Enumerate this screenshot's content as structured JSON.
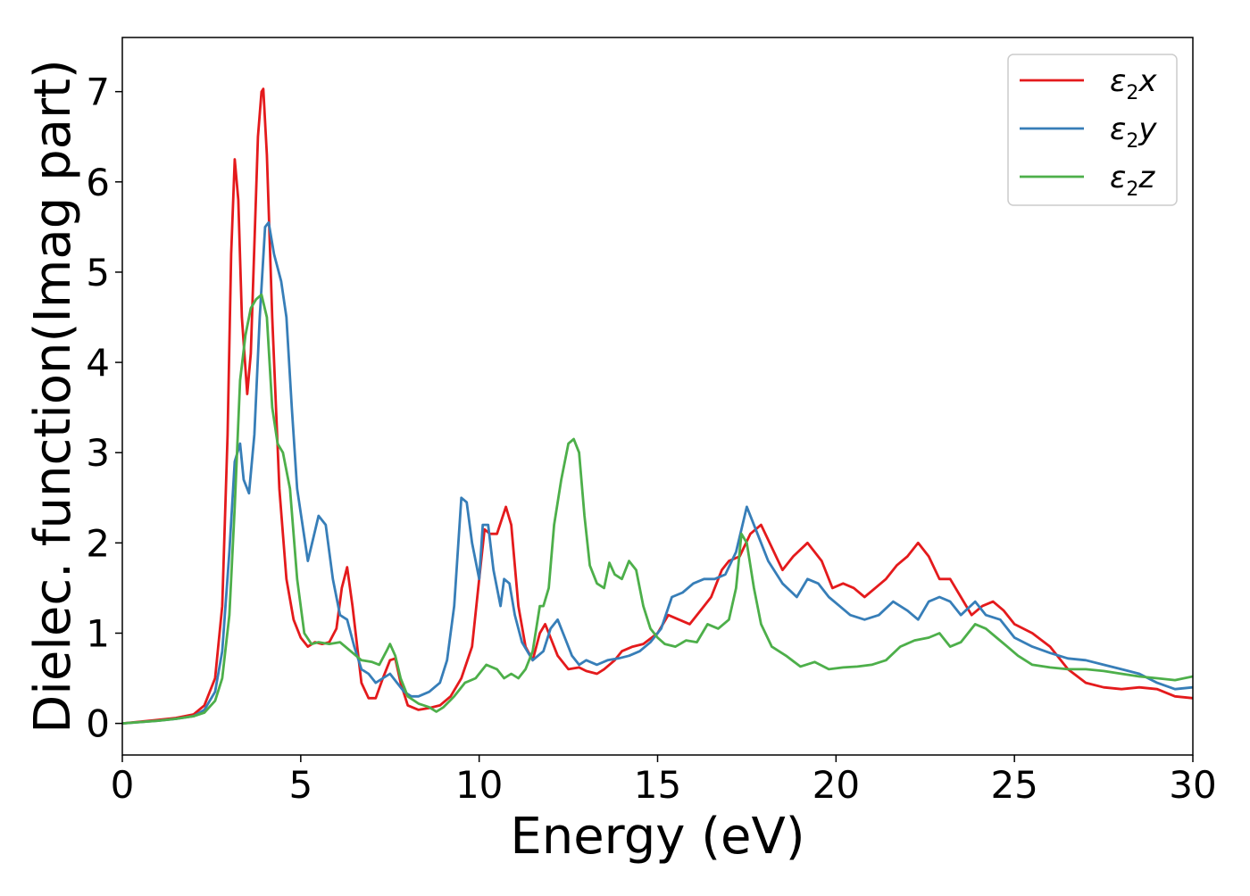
{
  "chart_data": {
    "type": "line",
    "xlabel": "Energy (eV)",
    "ylabel": "Dielec. function(Imag part)",
    "xlim": [
      0,
      30
    ],
    "ylim": [
      -0.35,
      7.6
    ],
    "xticks": [
      0,
      5,
      10,
      15,
      20,
      25,
      30
    ],
    "yticks": [
      0,
      1,
      2,
      3,
      4,
      5,
      6,
      7
    ],
    "grid": false,
    "legend_position": "top-right",
    "series": [
      {
        "name": "ε₂x",
        "legend_base": "ε",
        "legend_sub": "2",
        "legend_axis": "x",
        "color": "#e41a1c",
        "x": [
          0,
          1,
          1.5,
          2,
          2.3,
          2.6,
          2.8,
          2.95,
          3.05,
          3.15,
          3.25,
          3.35,
          3.5,
          3.6,
          3.7,
          3.8,
          3.9,
          3.95,
          4.05,
          4.2,
          4.4,
          4.6,
          4.8,
          5,
          5.2,
          5.4,
          5.6,
          5.8,
          6,
          6.15,
          6.3,
          6.45,
          6.7,
          6.9,
          7.1,
          7.3,
          7.5,
          7.65,
          7.8,
          8,
          8.3,
          8.6,
          8.9,
          9.2,
          9.5,
          9.8,
          10,
          10.15,
          10.3,
          10.5,
          10.75,
          10.9,
          11.1,
          11.3,
          11.5,
          11.7,
          11.85,
          12,
          12.2,
          12.5,
          12.8,
          13,
          13.3,
          13.5,
          13.8,
          14,
          14.3,
          14.6,
          15,
          15.3,
          15.6,
          15.9,
          16.2,
          16.5,
          16.8,
          17,
          17.3,
          17.6,
          17.9,
          18.2,
          18.5,
          18.8,
          19.2,
          19.6,
          19.9,
          20.2,
          20.5,
          20.8,
          21.1,
          21.4,
          21.7,
          22,
          22.3,
          22.6,
          22.9,
          23.2,
          23.5,
          23.8,
          24.1,
          24.4,
          24.7,
          25,
          25.5,
          26,
          26.5,
          27,
          27.5,
          28,
          28.5,
          29,
          29.5,
          30
        ],
        "values": [
          0,
          0.04,
          0.06,
          0.1,
          0.2,
          0.5,
          1.3,
          3.2,
          5.2,
          6.25,
          5.8,
          4.5,
          3.65,
          4.1,
          5.3,
          6.5,
          7.0,
          7.03,
          6.3,
          4.5,
          2.6,
          1.6,
          1.15,
          0.95,
          0.85,
          0.9,
          0.88,
          0.9,
          1.05,
          1.5,
          1.73,
          1.3,
          0.45,
          0.28,
          0.28,
          0.5,
          0.7,
          0.72,
          0.45,
          0.2,
          0.15,
          0.17,
          0.2,
          0.3,
          0.5,
          0.85,
          1.6,
          2.15,
          2.1,
          2.1,
          2.4,
          2.2,
          1.3,
          0.85,
          0.7,
          1.0,
          1.1,
          0.95,
          0.75,
          0.6,
          0.62,
          0.58,
          0.55,
          0.6,
          0.7,
          0.8,
          0.85,
          0.88,
          1.0,
          1.2,
          1.15,
          1.1,
          1.25,
          1.4,
          1.7,
          1.8,
          1.85,
          2.1,
          2.2,
          1.95,
          1.7,
          1.85,
          2.0,
          1.8,
          1.5,
          1.55,
          1.5,
          1.4,
          1.5,
          1.6,
          1.75,
          1.85,
          2.0,
          1.85,
          1.6,
          1.6,
          1.4,
          1.2,
          1.3,
          1.35,
          1.25,
          1.1,
          1.0,
          0.85,
          0.6,
          0.45,
          0.4,
          0.38,
          0.4,
          0.38,
          0.3,
          0.28
        ]
      },
      {
        "name": "ε₂y",
        "legend_base": "ε",
        "legend_sub": "2",
        "legend_axis": "y",
        "color": "#377eb8",
        "x": [
          0,
          1,
          1.5,
          2,
          2.3,
          2.6,
          2.8,
          3.0,
          3.15,
          3.3,
          3.4,
          3.55,
          3.7,
          3.85,
          4.0,
          4.1,
          4.25,
          4.45,
          4.6,
          4.75,
          4.9,
          5.05,
          5.2,
          5.5,
          5.7,
          5.9,
          6.1,
          6.3,
          6.5,
          6.7,
          6.9,
          7.1,
          7.3,
          7.5,
          7.7,
          7.9,
          8.1,
          8.3,
          8.6,
          8.9,
          9.1,
          9.3,
          9.5,
          9.65,
          9.8,
          10.0,
          10.1,
          10.25,
          10.4,
          10.6,
          10.7,
          10.85,
          11.0,
          11.2,
          11.5,
          11.8,
          12.0,
          12.2,
          12.4,
          12.6,
          12.8,
          13.0,
          13.3,
          13.6,
          13.9,
          14.2,
          14.5,
          14.8,
          15.1,
          15.4,
          15.7,
          16.0,
          16.3,
          16.6,
          16.9,
          17.2,
          17.5,
          17.8,
          18.1,
          18.5,
          18.9,
          19.2,
          19.5,
          19.8,
          20.1,
          20.4,
          20.8,
          21.2,
          21.6,
          22.0,
          22.3,
          22.6,
          22.9,
          23.2,
          23.5,
          23.9,
          24.2,
          24.6,
          25.0,
          25.5,
          26.0,
          26.5,
          27.0,
          27.5,
          28.0,
          28.5,
          29.0,
          29.5,
          30
        ],
        "values": [
          0,
          0.03,
          0.05,
          0.08,
          0.15,
          0.35,
          0.8,
          1.9,
          2.9,
          3.1,
          2.7,
          2.55,
          3.2,
          4.5,
          5.5,
          5.55,
          5.2,
          4.9,
          4.5,
          3.5,
          2.6,
          2.2,
          1.8,
          2.3,
          2.2,
          1.6,
          1.2,
          1.15,
          0.85,
          0.6,
          0.55,
          0.45,
          0.5,
          0.55,
          0.45,
          0.35,
          0.3,
          0.3,
          0.35,
          0.45,
          0.7,
          1.3,
          2.5,
          2.45,
          2.0,
          1.6,
          2.2,
          2.2,
          1.7,
          1.3,
          1.6,
          1.55,
          1.2,
          0.9,
          0.7,
          0.8,
          1.05,
          1.15,
          0.95,
          0.75,
          0.65,
          0.7,
          0.65,
          0.7,
          0.72,
          0.75,
          0.8,
          0.9,
          1.05,
          1.4,
          1.45,
          1.55,
          1.6,
          1.6,
          1.65,
          1.9,
          2.4,
          2.1,
          1.8,
          1.55,
          1.4,
          1.6,
          1.55,
          1.4,
          1.3,
          1.2,
          1.15,
          1.2,
          1.35,
          1.25,
          1.15,
          1.35,
          1.4,
          1.35,
          1.2,
          1.35,
          1.2,
          1.15,
          0.95,
          0.85,
          0.78,
          0.72,
          0.7,
          0.65,
          0.6,
          0.55,
          0.45,
          0.38,
          0.4
        ]
      },
      {
        "name": "ε₂z",
        "legend_base": "ε",
        "legend_sub": "2",
        "legend_axis": "z",
        "color": "#4daf4a",
        "x": [
          0,
          1,
          1.5,
          2,
          2.3,
          2.6,
          2.8,
          3.0,
          3.15,
          3.3,
          3.45,
          3.6,
          3.75,
          3.9,
          4.05,
          4.2,
          4.35,
          4.5,
          4.7,
          4.9,
          5.1,
          5.3,
          5.5,
          5.8,
          6.1,
          6.4,
          6.7,
          7.0,
          7.2,
          7.4,
          7.5,
          7.65,
          7.8,
          8.0,
          8.3,
          8.6,
          8.8,
          9.0,
          9.3,
          9.6,
          9.9,
          10.2,
          10.5,
          10.7,
          10.9,
          11.1,
          11.3,
          11.5,
          11.7,
          11.8,
          11.95,
          12.1,
          12.3,
          12.5,
          12.65,
          12.8,
          12.95,
          13.1,
          13.3,
          13.5,
          13.65,
          13.8,
          14.0,
          14.2,
          14.4,
          14.6,
          14.8,
          15.0,
          15.2,
          15.5,
          15.8,
          16.1,
          16.4,
          16.7,
          17.0,
          17.2,
          17.35,
          17.5,
          17.7,
          17.9,
          18.2,
          18.6,
          19.0,
          19.4,
          19.8,
          20.2,
          20.6,
          21.0,
          21.4,
          21.8,
          22.2,
          22.6,
          22.9,
          23.2,
          23.5,
          23.9,
          24.2,
          24.5,
          24.8,
          25.1,
          25.5,
          26.0,
          26.5,
          27.0,
          27.5,
          28.0,
          28.5,
          29.0,
          29.5,
          30
        ],
        "values": [
          0,
          0.03,
          0.05,
          0.08,
          0.12,
          0.25,
          0.5,
          1.2,
          2.4,
          3.8,
          4.3,
          4.6,
          4.7,
          4.75,
          4.5,
          3.5,
          3.1,
          3.0,
          2.6,
          1.6,
          1.0,
          0.88,
          0.9,
          0.88,
          0.9,
          0.8,
          0.7,
          0.68,
          0.65,
          0.8,
          0.88,
          0.75,
          0.5,
          0.3,
          0.22,
          0.18,
          0.13,
          0.18,
          0.3,
          0.45,
          0.5,
          0.65,
          0.6,
          0.5,
          0.55,
          0.5,
          0.6,
          0.8,
          1.3,
          1.3,
          1.5,
          2.2,
          2.7,
          3.1,
          3.15,
          3.0,
          2.3,
          1.75,
          1.55,
          1.5,
          1.78,
          1.65,
          1.6,
          1.8,
          1.7,
          1.3,
          1.05,
          0.95,
          0.88,
          0.85,
          0.92,
          0.9,
          1.1,
          1.05,
          1.15,
          1.5,
          2.1,
          2.0,
          1.5,
          1.1,
          0.85,
          0.75,
          0.63,
          0.68,
          0.6,
          0.62,
          0.63,
          0.65,
          0.7,
          0.85,
          0.92,
          0.95,
          1.0,
          0.85,
          0.9,
          1.1,
          1.05,
          0.95,
          0.85,
          0.75,
          0.65,
          0.62,
          0.6,
          0.6,
          0.58,
          0.55,
          0.52,
          0.5,
          0.48,
          0.52
        ]
      }
    ]
  }
}
